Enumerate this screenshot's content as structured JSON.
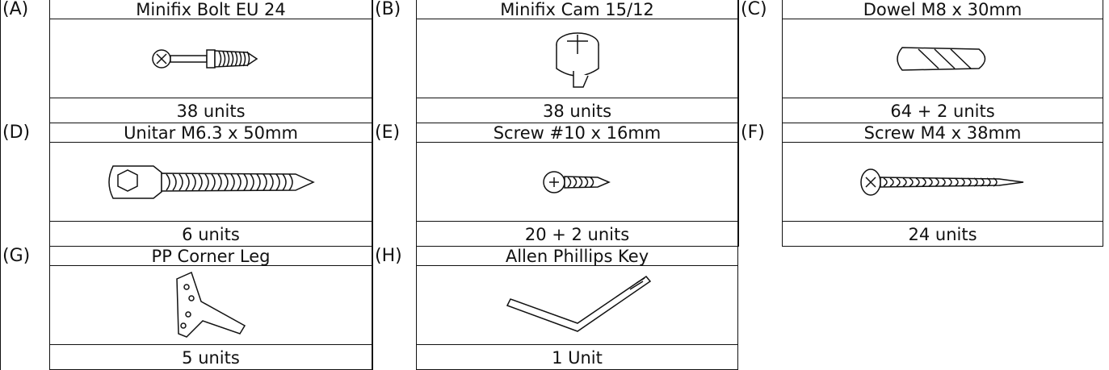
{
  "items": [
    {
      "letter": "(A)",
      "name": "Minifix Bolt EU 24",
      "count": "38 units"
    },
    {
      "letter": "(B)",
      "name": "Minifix Cam 15/12",
      "count": "38 units"
    },
    {
      "letter": "(C)",
      "name": "Dowel M8 x 30mm",
      "count": "64 + 2 units"
    },
    {
      "letter": "(D)",
      "name": "Unitar M6.3 x 50mm",
      "count": "6 units"
    },
    {
      "letter": "(E)",
      "name": "Screw #10 x 16mm",
      "count": "20 + 2 units"
    },
    {
      "letter": "(F)",
      "name": "Screw M4 x 38mm",
      "count": "24 units"
    },
    {
      "letter": "(G)",
      "name": "PP Corner Leg",
      "count": "5 units"
    },
    {
      "letter": "(H)",
      "name": "Allen Phillips Key",
      "count": "1 Unit"
    }
  ]
}
